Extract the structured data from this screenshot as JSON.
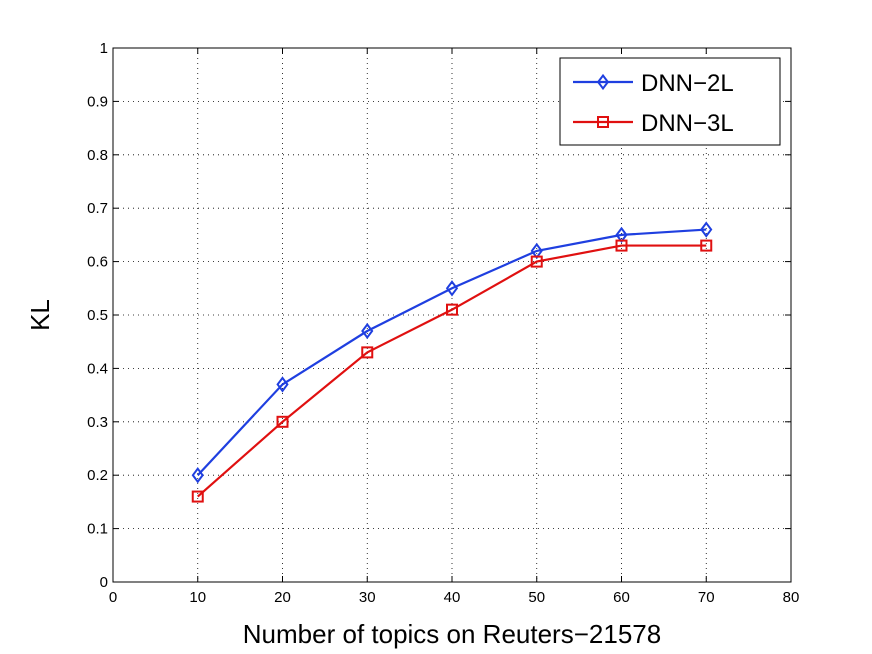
{
  "chart_data": {
    "type": "line",
    "xlabel": "Number of topics on Reuters−21578",
    "ylabel": "KL",
    "xlim": [
      0,
      80
    ],
    "ylim": [
      0,
      1
    ],
    "xticks": [
      "0",
      "10",
      "20",
      "30",
      "40",
      "50",
      "60",
      "70",
      "80"
    ],
    "yticks": [
      "0",
      "0.1",
      "0.2",
      "0.3",
      "0.4",
      "0.5",
      "0.6",
      "0.7",
      "0.8",
      "0.9",
      "1"
    ],
    "grid": true,
    "legend_position": "top-right",
    "x": [
      10,
      20,
      30,
      40,
      50,
      60,
      70
    ],
    "series": [
      {
        "name": "DNN−2L",
        "color": "#1f3fe0",
        "marker": "diamond",
        "values": [
          0.2,
          0.37,
          0.47,
          0.55,
          0.62,
          0.65,
          0.66
        ]
      },
      {
        "name": "DNN−3L",
        "color": "#e01010",
        "marker": "square",
        "values": [
          0.16,
          0.3,
          0.43,
          0.51,
          0.6,
          0.63,
          0.63
        ]
      }
    ]
  }
}
